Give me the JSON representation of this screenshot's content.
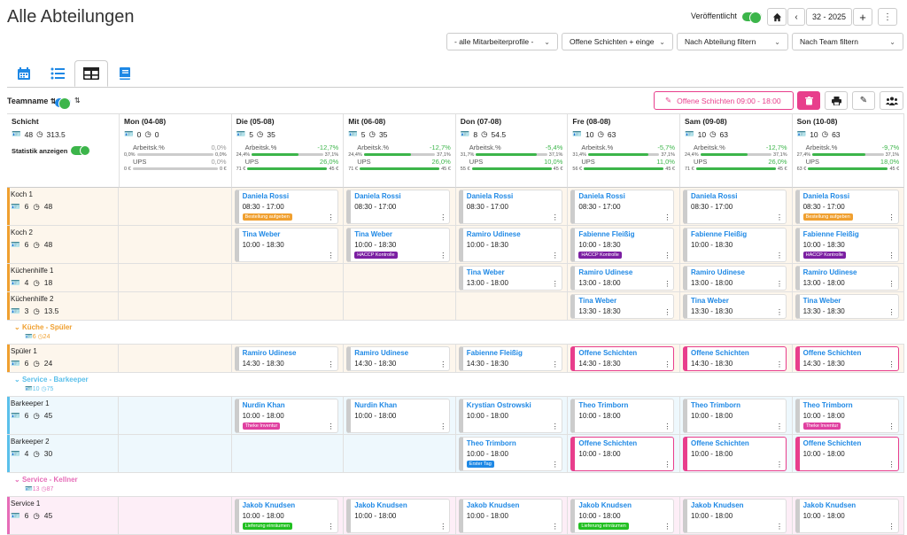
{
  "page_title": "Alle Abteilungen",
  "published_label": "Veröffentlicht",
  "week_label": "32 - 2025",
  "filters": [
    "- alle Mitarbeiterprofile -",
    "Offene Schichten + einge",
    "Nach Abteilung filtern",
    "Nach Team filtern"
  ],
  "teamname_label": "Teamname",
  "open_shift_button": "Offene Schichten 09:00 - 18:00",
  "schicht_header": {
    "label": "Schicht",
    "count": "48",
    "hours": "313.5",
    "stat_toggle": "Statistik anzeigen"
  },
  "days": [
    {
      "date": "Mon (04-08)",
      "count": "0",
      "hours": "0",
      "ak_label": "Arbeitsk.%",
      "ak_val": "0,0%",
      "ak_left": "0,0%",
      "ak_right": "0,0%",
      "ak_fill": 0,
      "ups_label": "UPS",
      "ups_val": "0,0%",
      "ups_left": "0 €",
      "ups_right": "0 €",
      "ups_fill": 0,
      "color": "#3cb54a"
    },
    {
      "date": "Die (05-08)",
      "count": "5",
      "hours": "35",
      "ak_label": "Arbeitsk.%",
      "ak_val": "-12,7%",
      "ak_left": "24,4%",
      "ak_right": "37,1%",
      "ak_fill": 0.66,
      "ups_label": "UPS",
      "ups_val": "26,0%",
      "ups_left": "71 €",
      "ups_right": "45 €",
      "ups_fill": 1.0,
      "color": "#3cb54a"
    },
    {
      "date": "Mit (06-08)",
      "count": "5",
      "hours": "35",
      "ak_label": "Arbeitsk.%",
      "ak_val": "-12,7%",
      "ak_left": "24,4%",
      "ak_right": "37,1%",
      "ak_fill": 0.66,
      "ups_label": "UPS",
      "ups_val": "26,0%",
      "ups_left": "71 €",
      "ups_right": "45 €",
      "ups_fill": 1.0,
      "color": "#3cb54a"
    },
    {
      "date": "Don (07-08)",
      "count": "8",
      "hours": "54.5",
      "ak_label": "Arbeitsk.%",
      "ak_val": "-5,4%",
      "ak_left": "31,7%",
      "ak_right": "37,1%",
      "ak_fill": 0.85,
      "ups_label": "UPS",
      "ups_val": "10,0%",
      "ups_left": "55 €",
      "ups_right": "45 €",
      "ups_fill": 1.0,
      "color": "#3cb54a"
    },
    {
      "date": "Fre (08-08)",
      "count": "10",
      "hours": "63",
      "ak_label": "Arbeitsk.%",
      "ak_val": "-5,7%",
      "ak_left": "31,4%",
      "ak_right": "37,1%",
      "ak_fill": 0.85,
      "ups_label": "UPS",
      "ups_val": "11,0%",
      "ups_left": "56 €",
      "ups_right": "45 €",
      "ups_fill": 1.0,
      "color": "#3cb54a"
    },
    {
      "date": "Sam (09-08)",
      "count": "10",
      "hours": "63",
      "ak_label": "Arbeitsk.%",
      "ak_val": "-12,7%",
      "ak_left": "24,4%",
      "ak_right": "37,1%",
      "ak_fill": 0.66,
      "ups_label": "UPS",
      "ups_val": "26,0%",
      "ups_left": "71 €",
      "ups_right": "45 €",
      "ups_fill": 1.0,
      "color": "#3cb54a"
    },
    {
      "date": "Son (10-08)",
      "count": "10",
      "hours": "63",
      "ak_label": "Arbeitsk.%",
      "ak_val": "-9,7%",
      "ak_left": "27,4%",
      "ak_right": "37,1%",
      "ak_fill": 0.74,
      "ups_label": "UPS",
      "ups_val": "18,0%",
      "ups_left": "63 €",
      "ups_right": "45 €",
      "ups_fill": 1.0,
      "color": "#3cb54a"
    }
  ],
  "rows": [
    {
      "type": "row",
      "label": "Koch 1",
      "count": "6",
      "hours": "48",
      "bg": "#fdf6ec",
      "bar": "#f0a030",
      "cells": [
        null,
        {
          "name": "Daniela Rossi",
          "time": "08:30 - 17:00",
          "tag": "Bestellung aufgeben",
          "tag_color": "#f0a030"
        },
        {
          "name": "Daniela Rossi",
          "time": "08:30 - 17:00"
        },
        {
          "name": "Daniela Rossi",
          "time": "08:30 - 17:00"
        },
        {
          "name": "Daniela Rossi",
          "time": "08:30 - 17:00"
        },
        {
          "name": "Daniela Rossi",
          "time": "08:30 - 17:00"
        },
        {
          "name": "Daniela Rossi",
          "time": "08:30 - 17:00",
          "tag": "Bestellung aufgeben",
          "tag_color": "#f0a030"
        }
      ]
    },
    {
      "type": "row",
      "label": "Koch 2",
      "count": "6",
      "hours": "48",
      "bg": "#fdf6ec",
      "bar": "#f0a030",
      "cells": [
        null,
        {
          "name": "Tina Weber",
          "time": "10:00 - 18:30"
        },
        {
          "name": "Tina Weber",
          "time": "10:00 - 18:30",
          "tag": "HACCP Kontrolle",
          "tag_color": "#7b1fa2"
        },
        {
          "name": "Ramiro Udinese",
          "time": "10:00 - 18:30"
        },
        {
          "name": "Fabienne Fleißig",
          "time": "10:00 - 18:30",
          "tag": "HACCP Kontrolle",
          "tag_color": "#7b1fa2"
        },
        {
          "name": "Fabienne Fleißig",
          "time": "10:00 - 18:30"
        },
        {
          "name": "Fabienne Fleißig",
          "time": "10:00 - 18:30",
          "tag": "HACCP Kontrolle",
          "tag_color": "#7b1fa2"
        }
      ]
    },
    {
      "type": "row",
      "label": "Küchenhilfe 1",
      "count": "4",
      "hours": "18",
      "bg": "#fdf6ec",
      "bar": "#f0a030",
      "cells": [
        null,
        null,
        null,
        {
          "name": "Tina Weber",
          "time": "13:00 - 18:00"
        },
        {
          "name": "Ramiro Udinese",
          "time": "13:00 - 18:00"
        },
        {
          "name": "Ramiro Udinese",
          "time": "13:00 - 18:00"
        },
        {
          "name": "Ramiro Udinese",
          "time": "13:00 - 18:00"
        }
      ]
    },
    {
      "type": "row",
      "label": "Küchenhilfe 2",
      "count": "3",
      "hours": "13.5",
      "bg": "#fdf6ec",
      "bar": "#f0a030",
      "cells": [
        null,
        null,
        null,
        null,
        {
          "name": "Tina Weber",
          "time": "13:30 - 18:30"
        },
        {
          "name": "Tina Weber",
          "time": "13:30 - 18:30"
        },
        {
          "name": "Tina Weber",
          "time": "13:30 - 18:30"
        }
      ]
    },
    {
      "type": "group",
      "label": "Küche - Spüler",
      "count": "6",
      "hours": "24",
      "color": "#f0a030"
    },
    {
      "type": "row",
      "label": "Spüler 1",
      "count": "6",
      "hours": "24",
      "bg": "#fdf6ec",
      "bar": "#f0a030",
      "cells": [
        null,
        {
          "name": "Ramiro Udinese",
          "time": "14:30 - 18:30"
        },
        {
          "name": "Ramiro Udinese",
          "time": "14:30 - 18:30"
        },
        {
          "name": "Fabienne Fleißig",
          "time": "14:30 - 18:30"
        },
        {
          "name": "Offene Schichten",
          "time": "14:30 - 18:30",
          "open": true
        },
        {
          "name": "Offene Schichten",
          "time": "14:30 - 18:30",
          "open": true
        },
        {
          "name": "Offene Schichten",
          "time": "14:30 - 18:30",
          "open": true
        }
      ]
    },
    {
      "type": "group",
      "label": "Service - Barkeeper",
      "count": "10",
      "hours": "75",
      "color": "#5bc0eb"
    },
    {
      "type": "row",
      "label": "Barkeeper 1",
      "count": "6",
      "hours": "45",
      "bg": "#eef8fd",
      "bar": "#5bc0eb",
      "cells": [
        null,
        {
          "name": "Nurdin Khan",
          "time": "10:00 - 18:00",
          "tag": "Theke Inventur",
          "tag_color": "#e040a0"
        },
        {
          "name": "Nurdin Khan",
          "time": "10:00 - 18:00"
        },
        {
          "name": "Krystian Ostrowski",
          "time": "10:00 - 18:00"
        },
        {
          "name": "Theo Trimborn",
          "time": "10:00 - 18:00"
        },
        {
          "name": "Theo Trimborn",
          "time": "10:00 - 18:00"
        },
        {
          "name": "Theo Trimborn",
          "time": "10:00 - 18:00",
          "tag": "Theke Inventur",
          "tag_color": "#e040a0"
        }
      ]
    },
    {
      "type": "row",
      "label": "Barkeeper 2",
      "count": "4",
      "hours": "30",
      "bg": "#eef8fd",
      "bar": "#5bc0eb",
      "cells": [
        null,
        null,
        null,
        {
          "name": "Theo Trimborn",
          "time": "10:00 - 18:00",
          "tag": "Erster Tag",
          "tag_color": "#1e88e5"
        },
        {
          "name": "Offene Schichten",
          "time": "10:00 - 18:00",
          "open": true
        },
        {
          "name": "Offene Schichten",
          "time": "10:00 - 18:00",
          "open": true
        },
        {
          "name": "Offene Schichten",
          "time": "10:00 - 18:00",
          "open": true
        }
      ]
    },
    {
      "type": "group",
      "label": "Service - Kellner",
      "count": "13",
      "hours": "87",
      "color": "#e66db8"
    },
    {
      "type": "row",
      "label": "Service 1",
      "count": "6",
      "hours": "45",
      "bg": "#fdeef7",
      "bar": "#e66db8",
      "cells": [
        null,
        {
          "name": "Jakob Knudsen",
          "time": "10:00 - 18:00",
          "tag": "Lieferung einräumen",
          "tag_color": "#22c022"
        },
        {
          "name": "Jakob Knudsen",
          "time": "10:00 - 18:00"
        },
        {
          "name": "Jakob Knudsen",
          "time": "10:00 - 18:00"
        },
        {
          "name": "Jakob Knudsen",
          "time": "10:00 - 18:00",
          "tag": "Lieferung einräumen",
          "tag_color": "#22c022"
        },
        {
          "name": "Jakob Knudsen",
          "time": "10:00 - 18:00"
        },
        {
          "name": "Jakob Knudsen",
          "time": "10:00 - 18:00"
        }
      ]
    }
  ]
}
